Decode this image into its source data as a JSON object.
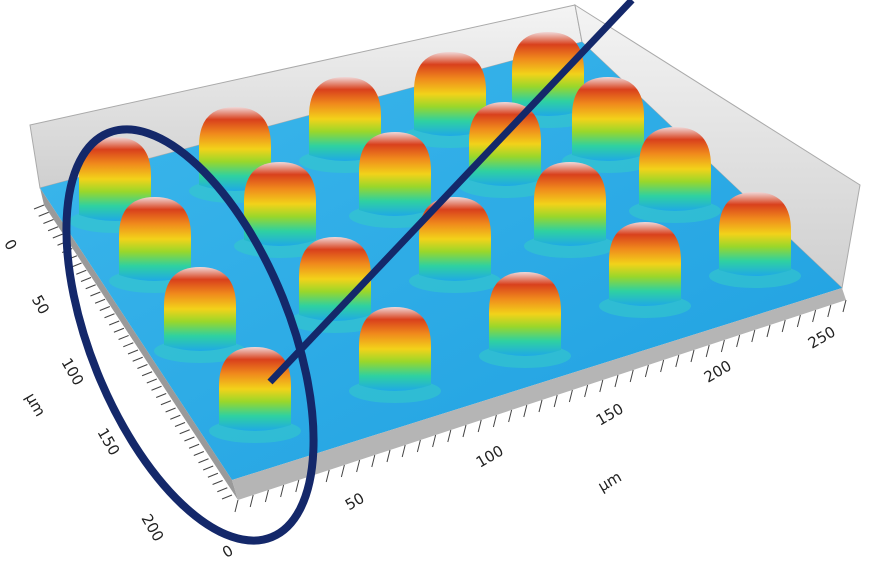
{
  "left_axis": {
    "ticks": [
      0,
      50,
      100,
      150,
      200
    ],
    "unit": "µm"
  },
  "bottom_axis": {
    "ticks": [
      0,
      50,
      100,
      150,
      200,
      250
    ],
    "unit": "µm"
  }
}
